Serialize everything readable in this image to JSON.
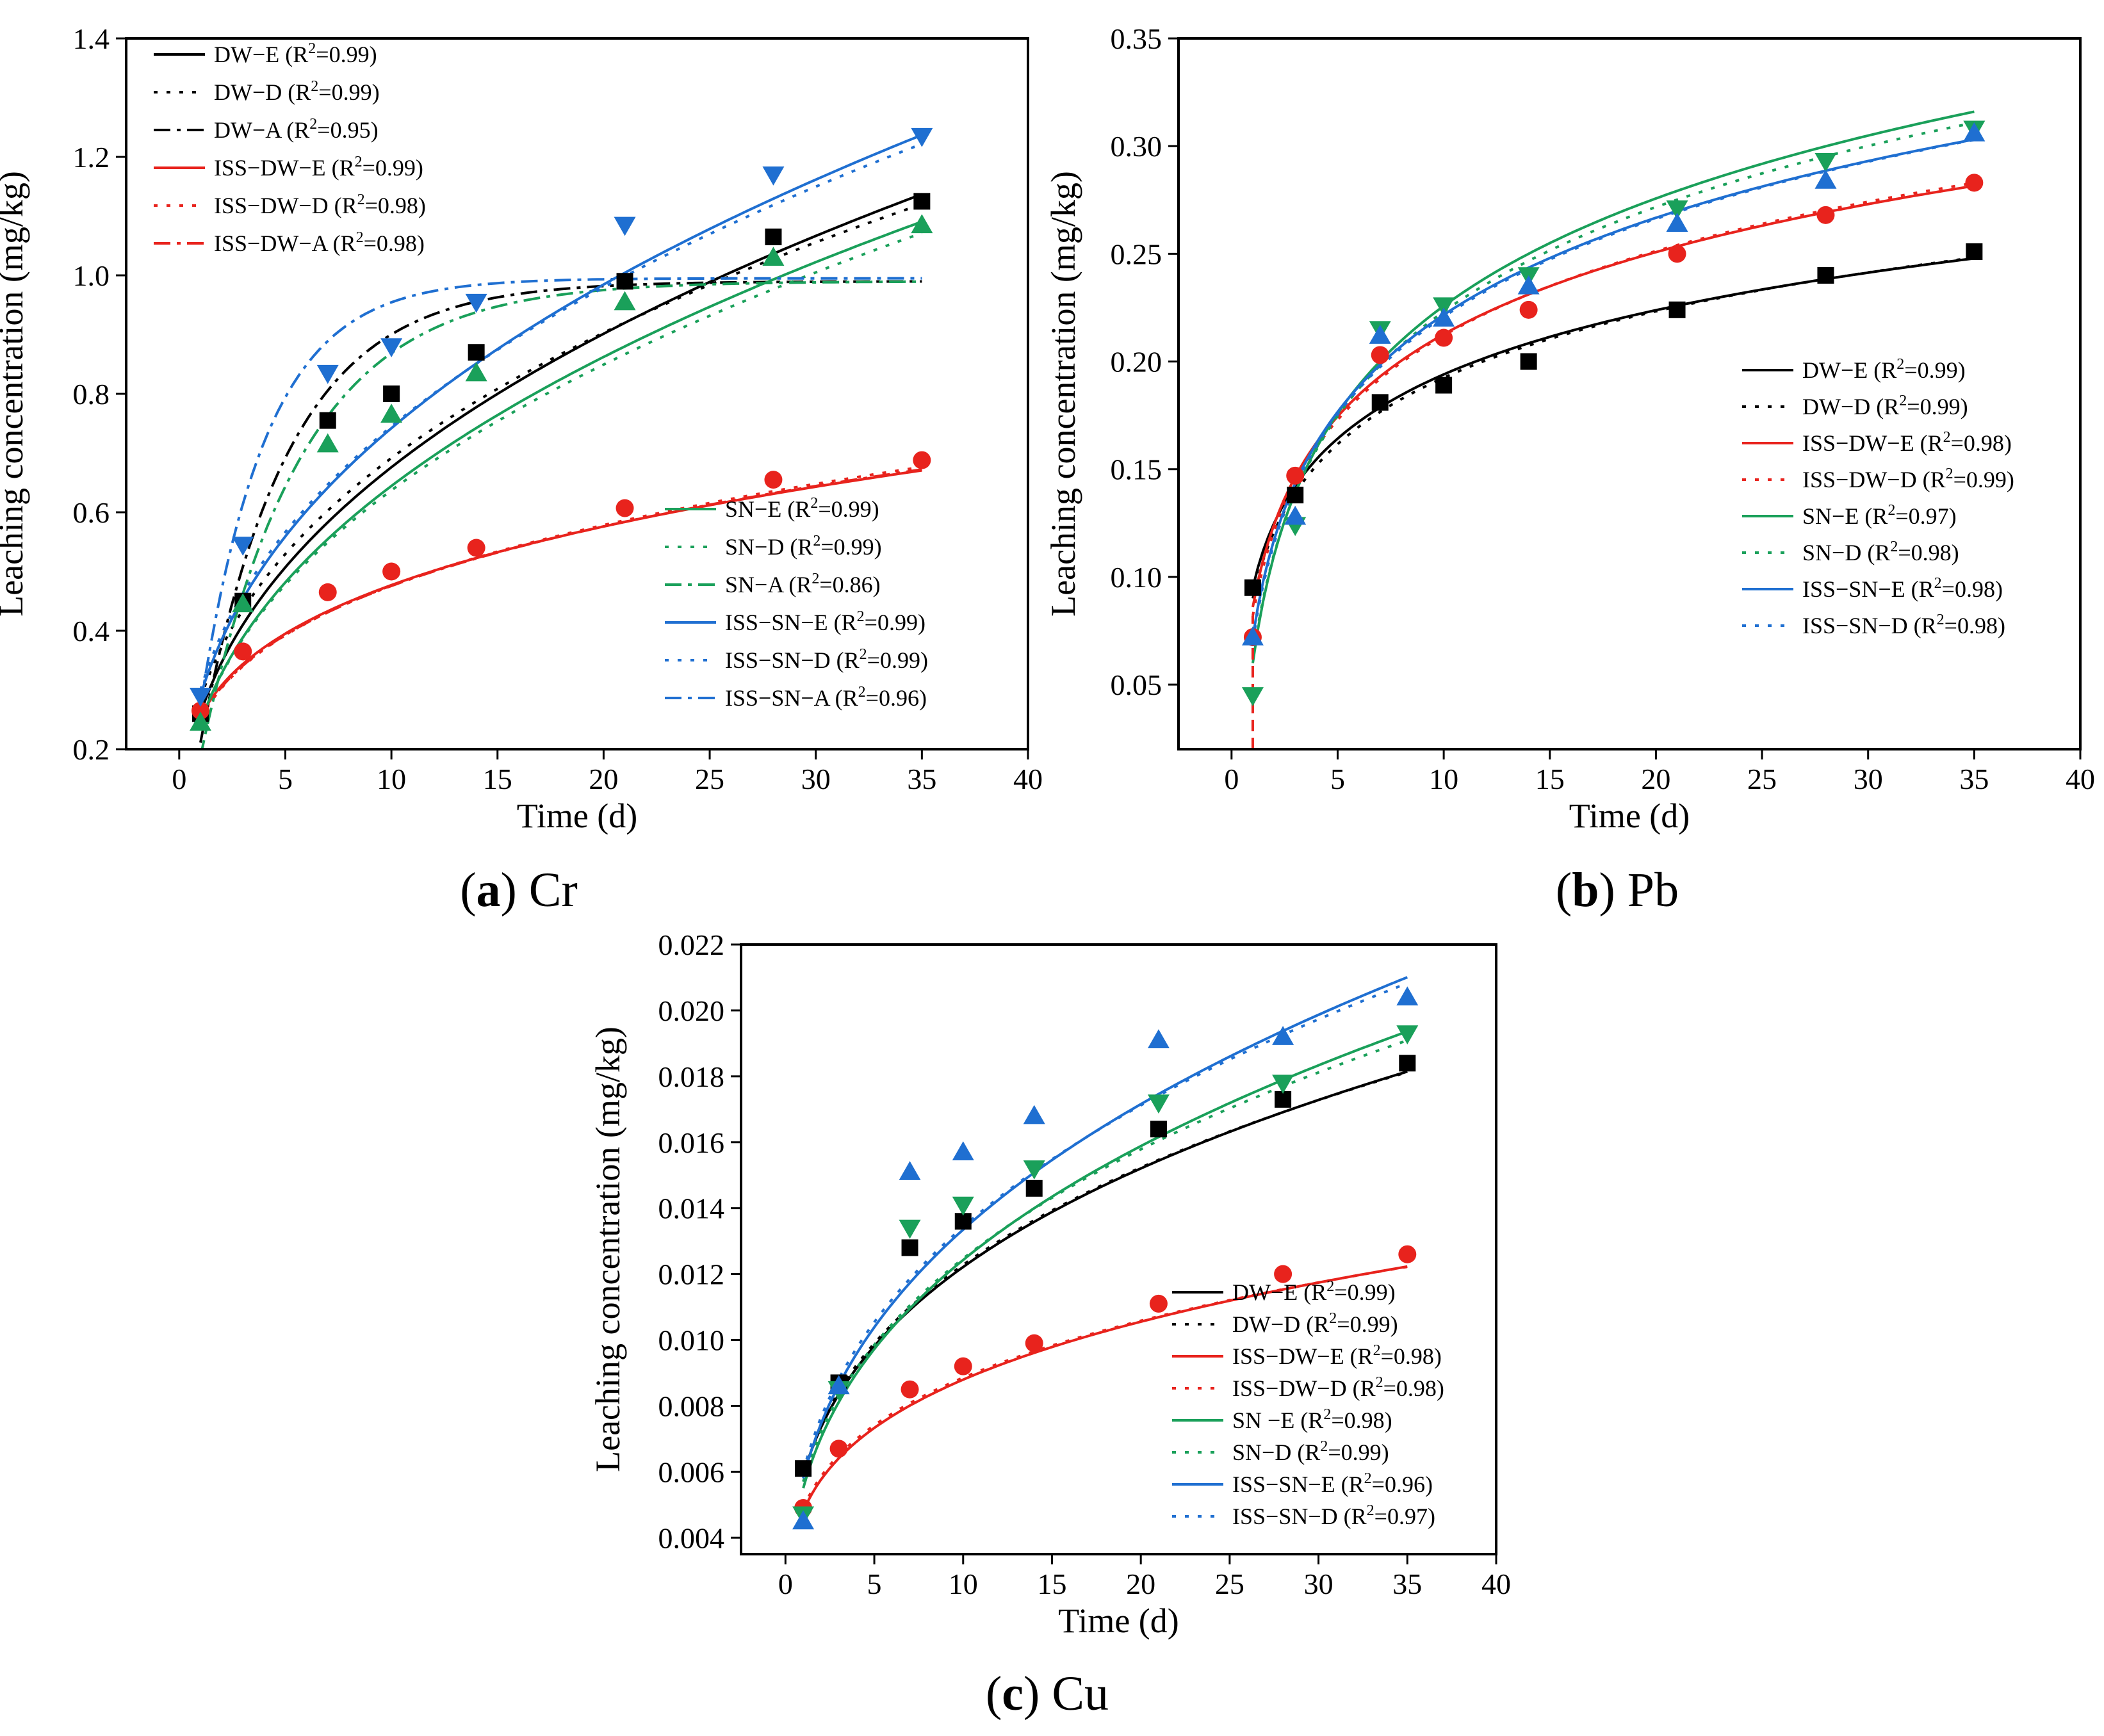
{
  "chart_data": [
    {
      "type": "scatter",
      "panel": "a",
      "caption": {
        "letter": "a",
        "element": "Cr"
      },
      "xlabel": "Time (d)",
      "ylabel": "Leaching concentration (mg/kg)",
      "xlim": [
        -2.5,
        40
      ],
      "ylim": [
        0.2,
        1.4
      ],
      "xticks": [
        0,
        5,
        10,
        15,
        20,
        25,
        30,
        35,
        40
      ],
      "yticks": [
        0.2,
        0.4,
        0.6,
        0.8,
        1.0,
        1.2,
        1.4
      ],
      "ytick_decimals": 1,
      "legend_groups": [
        {
          "position": "top-left",
          "entries": [
            {
              "name": "DW−E",
              "r2": "0.99",
              "color": "#000000",
              "dash": "solid"
            },
            {
              "name": "DW−D",
              "r2": "0.99",
              "color": "#000000",
              "dash": "dot"
            },
            {
              "name": "DW−A",
              "r2": "0.95",
              "color": "#000000",
              "dash": "dashdot"
            },
            {
              "name": "ISS−DW−E",
              "r2": "0.99",
              "color": "#e8231d",
              "dash": "solid"
            },
            {
              "name": "ISS−DW−D",
              "r2": "0.98",
              "color": "#e8231d",
              "dash": "dot"
            },
            {
              "name": "ISS−DW−A",
              "r2": "0.98",
              "color": "#e8231d",
              "dash": "dashdot"
            }
          ]
        },
        {
          "position": "bottom-right",
          "entries": [
            {
              "name": "SN−E",
              "r2": "0.99",
              "color": "#1aa05a",
              "dash": "solid"
            },
            {
              "name": "SN−D",
              "r2": "0.99",
              "color": "#1aa05a",
              "dash": "dot"
            },
            {
              "name": "SN−A",
              "r2": "0.86",
              "color": "#1aa05a",
              "dash": "dashdot"
            },
            {
              "name": "ISS−SN−E",
              "r2": "0.99",
              "color": "#1f6fd1",
              "dash": "solid"
            },
            {
              "name": "ISS−SN−D",
              "r2": "0.99",
              "color": "#1f6fd1",
              "dash": "dot"
            },
            {
              "name": "ISS−SN−A",
              "r2": "0.96",
              "color": "#1f6fd1",
              "dash": "dashdot"
            }
          ]
        }
      ],
      "points": [
        {
          "name": "DW",
          "marker": "square",
          "color": "#000000",
          "x": [
            1,
            3,
            7,
            10,
            14,
            21,
            28,
            35
          ],
          "y": [
            0.26,
            0.45,
            0.755,
            0.8,
            0.87,
            0.99,
            1.065,
            1.125
          ]
        },
        {
          "name": "ISS-DW",
          "marker": "circle",
          "color": "#e8231d",
          "x": [
            1,
            3,
            7,
            10,
            14,
            21,
            28,
            35
          ],
          "y": [
            0.265,
            0.365,
            0.465,
            0.5,
            0.54,
            0.607,
            0.655,
            0.688
          ]
        },
        {
          "name": "SN",
          "marker": "triangle-up",
          "color": "#1aa05a",
          "x": [
            1,
            3,
            7,
            10,
            14,
            21,
            28,
            35
          ],
          "y": [
            0.245,
            0.445,
            0.715,
            0.765,
            0.835,
            0.955,
            1.03,
            1.085
          ]
        },
        {
          "name": "ISS-SN",
          "marker": "triangle-down",
          "color": "#1f6fd1",
          "x": [
            1,
            3,
            7,
            10,
            14,
            21,
            28,
            35
          ],
          "y": [
            0.29,
            0.545,
            0.835,
            0.88,
            0.955,
            1.085,
            1.17,
            1.235
          ]
        }
      ],
      "curves": [
        {
          "name": "DW-E",
          "color": "#000000",
          "dash": "solid",
          "model": "power",
          "p": [
            0.26,
            0.415
          ],
          "xrange": [
            1,
            35
          ]
        },
        {
          "name": "DW-D",
          "color": "#000000",
          "dash": "dot",
          "model": "power",
          "p": [
            0.285,
            0.385
          ],
          "xrange": [
            1,
            35
          ]
        },
        {
          "name": "DW-A",
          "color": "#000000",
          "dash": "dashdot",
          "model": "exp",
          "p": [
            0.99,
            0.24
          ],
          "xrange": [
            1,
            35
          ]
        },
        {
          "name": "ISS-DW-E",
          "color": "#e8231d",
          "dash": "solid",
          "model": "power",
          "p": [
            0.255,
            0.272
          ],
          "xrange": [
            1,
            35
          ]
        },
        {
          "name": "ISS-DW-D",
          "color": "#e8231d",
          "dash": "dot",
          "model": "power",
          "p": [
            0.25,
            0.28
          ],
          "xrange": [
            1,
            35
          ]
        },
        {
          "name": "ISS-DW-A",
          "color": "#e8231d",
          "dash": "dashdot",
          "model": "power",
          "p": [
            0.252,
            0.276
          ],
          "xrange": [
            1,
            35
          ]
        },
        {
          "name": "SN-E",
          "color": "#1aa05a",
          "dash": "solid",
          "model": "power",
          "p": [
            0.245,
            0.42
          ],
          "xrange": [
            1,
            35
          ]
        },
        {
          "name": "SN-D",
          "color": "#1aa05a",
          "dash": "dot",
          "model": "power",
          "p": [
            0.245,
            0.415
          ],
          "xrange": [
            1,
            35
          ]
        },
        {
          "name": "SN-A",
          "color": "#1aa05a",
          "dash": "dashdot",
          "model": "exp",
          "p": [
            0.99,
            0.21
          ],
          "xrange": [
            1,
            35
          ]
        },
        {
          "name": "ISS-SN-E",
          "color": "#1f6fd1",
          "dash": "solid",
          "model": "power",
          "p": [
            0.29,
            0.408
          ],
          "xrange": [
            1,
            35
          ]
        },
        {
          "name": "ISS-SN-D",
          "color": "#1f6fd1",
          "dash": "dot",
          "model": "power",
          "p": [
            0.3,
            0.395
          ],
          "xrange": [
            1,
            35
          ]
        },
        {
          "name": "ISS-SN-A",
          "color": "#1f6fd1",
          "dash": "dashdot",
          "model": "exp",
          "p": [
            0.995,
            0.32
          ],
          "xrange": [
            1,
            35
          ]
        }
      ]
    },
    {
      "type": "scatter",
      "panel": "b",
      "caption": {
        "letter": "b",
        "element": "Pb"
      },
      "xlabel": "Time (d)",
      "ylabel": "Leaching concentration (mg/kg)",
      "xlim": [
        -2.5,
        40
      ],
      "ylim": [
        0.02,
        0.35
      ],
      "xticks": [
        0,
        5,
        10,
        15,
        20,
        25,
        30,
        35,
        40
      ],
      "yticks": [
        0.05,
        0.1,
        0.15,
        0.2,
        0.25,
        0.3,
        0.35
      ],
      "ytick_decimals": 2,
      "legend_groups": [
        {
          "position": "right",
          "entries": [
            {
              "name": "DW−E",
              "r2": "0.99",
              "color": "#000000",
              "dash": "solid"
            },
            {
              "name": "DW−D",
              "r2": "0.99",
              "color": "#000000",
              "dash": "dot"
            },
            {
              "name": "ISS−DW−E",
              "r2": "0.98",
              "color": "#e8231d",
              "dash": "solid"
            },
            {
              "name": "ISS−DW−D",
              "r2": "0.99",
              "color": "#e8231d",
              "dash": "dot"
            },
            {
              "name": "SN−E",
              "r2": "0.97",
              "color": "#1aa05a",
              "dash": "solid"
            },
            {
              "name": "SN−D",
              "r2": "0.98",
              "color": "#1aa05a",
              "dash": "dot"
            },
            {
              "name": "ISS−SN−E",
              "r2": "0.98",
              "color": "#1f6fd1",
              "dash": "solid"
            },
            {
              "name": "ISS−SN−D",
              "r2": "0.98",
              "color": "#1f6fd1",
              "dash": "dot"
            }
          ]
        }
      ],
      "points": [
        {
          "name": "DW",
          "marker": "square",
          "color": "#000000",
          "x": [
            1,
            3,
            7,
            10,
            14,
            21,
            28,
            35
          ],
          "y": [
            0.095,
            0.138,
            0.181,
            0.189,
            0.2,
            0.224,
            0.24,
            0.251
          ]
        },
        {
          "name": "ISS-DW",
          "marker": "circle",
          "color": "#e8231d",
          "x": [
            1,
            3,
            7,
            10,
            14,
            21,
            28,
            35
          ],
          "y": [
            0.072,
            0.147,
            0.203,
            0.211,
            0.224,
            0.25,
            0.268,
            0.283
          ]
        },
        {
          "name": "SN",
          "marker": "triangle-down",
          "color": "#1aa05a",
          "x": [
            1,
            3,
            7,
            10,
            14,
            21,
            28,
            35
          ],
          "y": [
            0.045,
            0.124,
            0.215,
            0.226,
            0.24,
            0.271,
            0.293,
            0.308
          ]
        },
        {
          "name": "ISS-SN",
          "marker": "triangle-up",
          "color": "#1f6fd1",
          "x": [
            1,
            3,
            7,
            10,
            14,
            21,
            28,
            35
          ],
          "y": [
            0.072,
            0.128,
            0.212,
            0.22,
            0.235,
            0.264,
            0.284,
            0.306
          ]
        }
      ],
      "curves": [
        {
          "name": "DW-E",
          "color": "#000000",
          "dash": "solid",
          "model": "log",
          "p": [
            0.095,
            0.043
          ],
          "xrange": [
            1,
            35
          ]
        },
        {
          "name": "DW-D",
          "color": "#000000",
          "dash": "dot",
          "model": "log",
          "p": [
            0.09,
            0.0445
          ],
          "xrange": [
            1,
            35
          ]
        },
        {
          "name": "ISS-DW-E",
          "color": "#e8231d",
          "dash": "solid",
          "model": "log",
          "p": [
            0.086,
            0.055
          ],
          "xrange": [
            1,
            35
          ]
        },
        {
          "name": "ISS-DW-D",
          "color": "#e8231d",
          "dash": "dot",
          "model": "log",
          "p": [
            0.082,
            0.0565
          ],
          "xrange": [
            1,
            35
          ]
        },
        {
          "name": "SN-E",
          "color": "#1aa05a",
          "dash": "solid",
          "model": "log",
          "p": [
            0.06,
            0.072
          ],
          "xrange": [
            1,
            35
          ]
        },
        {
          "name": "SN-D",
          "color": "#1aa05a",
          "dash": "dot",
          "model": "log",
          "p": [
            0.062,
            0.07
          ],
          "xrange": [
            1,
            35
          ]
        },
        {
          "name": "ISS-SN-E",
          "color": "#1f6fd1",
          "dash": "solid",
          "model": "log",
          "p": [
            0.072,
            0.065
          ],
          "xrange": [
            1,
            35
          ]
        },
        {
          "name": "ISS-SN-D",
          "color": "#1f6fd1",
          "dash": "dot",
          "model": "log",
          "p": [
            0.07,
            0.0655
          ],
          "xrange": [
            1,
            35
          ]
        }
      ],
      "vertical_lines": [
        {
          "name": "ISS-DW-D-drop",
          "color": "#e8231d",
          "dash": "dash",
          "x": 1,
          "y": [
            0.02,
            0.082
          ]
        }
      ]
    },
    {
      "type": "scatter",
      "panel": "c",
      "caption": {
        "letter": "c",
        "element": "Cu"
      },
      "xlabel": "Time (d)",
      "ylabel": "Leaching concentration (mg/kg)",
      "xlim": [
        -2.5,
        40
      ],
      "ylim": [
        0.0035,
        0.022
      ],
      "xticks": [
        0,
        5,
        10,
        15,
        20,
        25,
        30,
        35,
        40
      ],
      "yticks": [
        0.004,
        0.006,
        0.008,
        0.01,
        0.012,
        0.014,
        0.016,
        0.018,
        0.02,
        0.022
      ],
      "ytick_decimals": 3,
      "legend_groups": [
        {
          "position": "bottom-right",
          "entries": [
            {
              "name": "DW−E",
              "r2": "0.99",
              "color": "#000000",
              "dash": "solid"
            },
            {
              "name": "DW−D",
              "r2": "0.99",
              "color": "#000000",
              "dash": "dot"
            },
            {
              "name": "ISS−DW−E",
              "r2": "0.98",
              "color": "#e8231d",
              "dash": "solid"
            },
            {
              "name": "ISS−DW−D",
              "r2": "0.98",
              "color": "#e8231d",
              "dash": "dot"
            },
            {
              "name": "SN −E",
              "r2": "0.98",
              "color": "#1aa05a",
              "dash": "solid"
            },
            {
              "name": "SN−D",
              "r2": "0.99",
              "color": "#1aa05a",
              "dash": "dot"
            },
            {
              "name": "ISS−SN−E",
              "r2": "0.96",
              "color": "#1f6fd1",
              "dash": "solid"
            },
            {
              "name": "ISS−SN−D",
              "r2": "0.97",
              "color": "#1f6fd1",
              "dash": "dot"
            }
          ]
        }
      ],
      "points": [
        {
          "name": "DW",
          "marker": "square",
          "color": "#000000",
          "x": [
            1,
            3,
            7,
            10,
            14,
            21,
            28,
            35
          ],
          "y": [
            0.0061,
            0.0087,
            0.0128,
            0.0136,
            0.0146,
            0.0164,
            0.0173,
            0.0184
          ]
        },
        {
          "name": "ISS-DW",
          "marker": "circle",
          "color": "#e8231d",
          "x": [
            1,
            3,
            7,
            10,
            14,
            21,
            28,
            35
          ],
          "y": [
            0.0049,
            0.0067,
            0.0085,
            0.0092,
            0.0099,
            0.0111,
            0.012,
            0.0126
          ]
        },
        {
          "name": "SN",
          "marker": "triangle-down",
          "color": "#1aa05a",
          "x": [
            1,
            3,
            7,
            10,
            14,
            21,
            28,
            35
          ],
          "y": [
            0.0047,
            0.0085,
            0.0134,
            0.0141,
            0.0152,
            0.0172,
            0.0178,
            0.0193
          ]
        },
        {
          "name": "ISS-SN",
          "marker": "triangle-up",
          "color": "#1f6fd1",
          "x": [
            1,
            3,
            7,
            10,
            14,
            21,
            28,
            35
          ],
          "y": [
            0.0045,
            0.0086,
            0.0151,
            0.0157,
            0.0168,
            0.0191,
            0.0192,
            0.0204
          ]
        }
      ],
      "curves": [
        {
          "name": "DW-E",
          "color": "#000000",
          "dash": "solid",
          "model": "power",
          "p": [
            0.0059,
            0.316
          ],
          "xrange": [
            1,
            35
          ]
        },
        {
          "name": "DW-D",
          "color": "#000000",
          "dash": "dot",
          "model": "power",
          "p": [
            0.006,
            0.311
          ],
          "xrange": [
            1,
            35
          ]
        },
        {
          "name": "ISS-DW-E",
          "color": "#e8231d",
          "dash": "solid",
          "model": "power",
          "p": [
            0.0048,
            0.263
          ],
          "xrange": [
            1,
            35
          ]
        },
        {
          "name": "ISS-DW-D",
          "color": "#e8231d",
          "dash": "dot",
          "model": "power",
          "p": [
            0.0049,
            0.257
          ],
          "xrange": [
            1,
            35
          ]
        },
        {
          "name": "SN-E",
          "color": "#1aa05a",
          "dash": "solid",
          "model": "power",
          "p": [
            0.0055,
            0.354
          ],
          "xrange": [
            1,
            35
          ]
        },
        {
          "name": "SN-D",
          "color": "#1aa05a",
          "dash": "dot",
          "model": "power",
          "p": [
            0.0057,
            0.34
          ],
          "xrange": [
            1,
            35
          ]
        },
        {
          "name": "ISS-SN-E",
          "color": "#1f6fd1",
          "dash": "solid",
          "model": "power",
          "p": [
            0.0058,
            0.362
          ],
          "xrange": [
            1,
            35
          ]
        },
        {
          "name": "ISS-SN-D",
          "color": "#1f6fd1",
          "dash": "dot",
          "model": "power",
          "p": [
            0.006,
            0.35
          ],
          "xrange": [
            1,
            35
          ]
        }
      ]
    }
  ]
}
